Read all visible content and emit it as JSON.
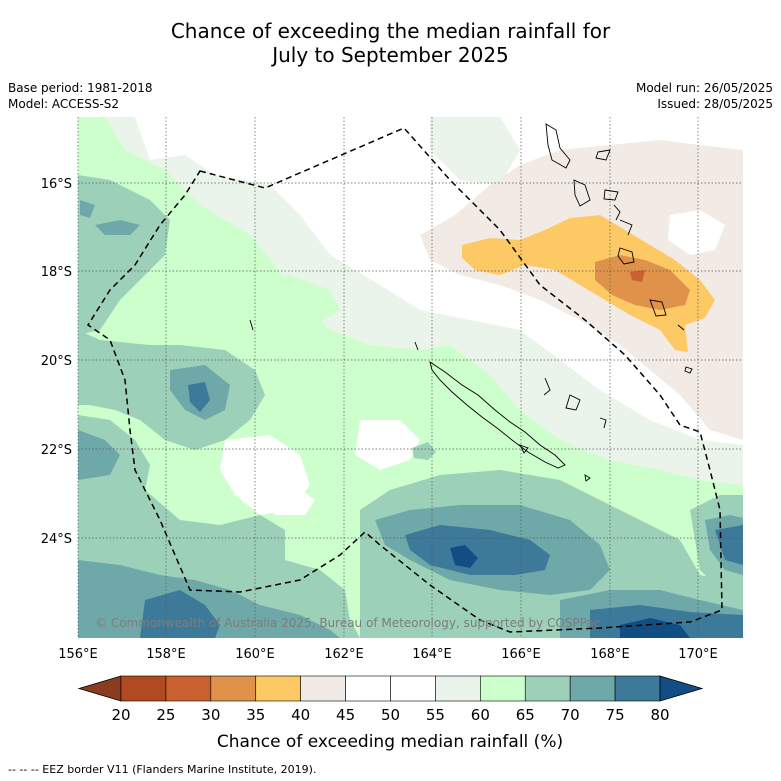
{
  "title_line1": "Chance of exceeding the median rainfall for",
  "title_line2": "July to September 2025",
  "meta_left": {
    "base_period": "Base period: 1981-2018",
    "model": "Model: ACCESS-S2"
  },
  "meta_right": {
    "model_run": "Model run: 26/05/2025",
    "issued": "Issued: 28/05/2025"
  },
  "map": {
    "lat_labels": [
      "16°S",
      "18°S",
      "20°S",
      "22°S",
      "24°S"
    ],
    "lon_labels": [
      "156°E",
      "158°E",
      "160°E",
      "162°E",
      "164°E",
      "166°E",
      "168°E",
      "170°E"
    ],
    "copyright": "© Commonwealth of Australia 2025, Bureau of Meteorology, supported by COSPPac",
    "icons": [
      "new-caledonia-coastline",
      "vanuatu-coastline",
      "eez-border-line"
    ]
  },
  "colorbar": {
    "ticks": [
      "20",
      "25",
      "30",
      "35",
      "40",
      "45",
      "50",
      "55",
      "60",
      "65",
      "70",
      "75",
      "80"
    ],
    "colors": [
      "#8b3c1e",
      "#b04a22",
      "#c9602f",
      "#e0924a",
      "#fdc964",
      "#f2ebe5",
      "#ffffff",
      "#ffffff",
      "#ebf4eb",
      "#ccffcc",
      "#9dd0b8",
      "#6fa8a8",
      "#3d7a9a",
      "#124e84"
    ],
    "title": "Chance of exceeding median rainfall (%)"
  },
  "footer": "--  --  -- EEZ border V11 (Flanders Marine Institute, 2019)."
}
